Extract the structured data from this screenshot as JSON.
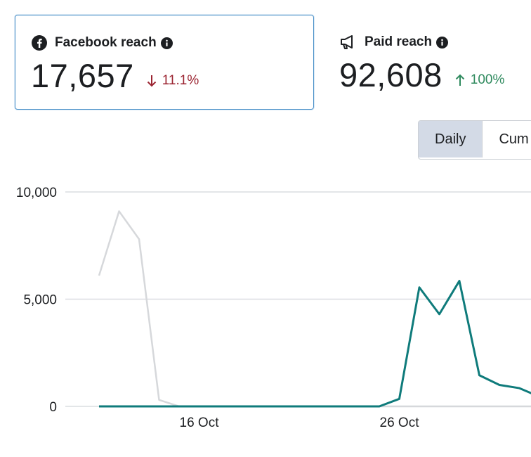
{
  "cards": [
    {
      "label": "Facebook reach",
      "value": "17,657",
      "change": "11.1%",
      "direction": "down",
      "icon": "facebook-icon"
    },
    {
      "label": "Paid reach",
      "value": "92,608",
      "change": "100%",
      "direction": "up",
      "icon": "megaphone-icon"
    }
  ],
  "toggle": {
    "daily_label": "Daily",
    "cumulative_label": "Cum"
  },
  "colors": {
    "primary_series": "#0f7b7b",
    "comparison_series": "#d6d8db",
    "down": "#9b2431",
    "up": "#2f8a5e"
  },
  "chart_data": {
    "type": "line",
    "x": [
      "11 Oct",
      "12 Oct",
      "13 Oct",
      "14 Oct",
      "15 Oct",
      "16 Oct",
      "17 Oct",
      "18 Oct",
      "19 Oct",
      "20 Oct",
      "21 Oct",
      "22 Oct",
      "23 Oct",
      "24 Oct",
      "25 Oct",
      "26 Oct",
      "27 Oct",
      "28 Oct",
      "29 Oct",
      "30 Oct",
      "31 Oct",
      "1 Nov",
      "2 Nov",
      "3 Nov"
    ],
    "x_tick_labels": [
      "16 Oct",
      "26 Oct"
    ],
    "y_tick_labels": [
      "10,000",
      "5,000",
      "0"
    ],
    "ylim": [
      0,
      10000
    ],
    "grid": true,
    "series": [
      {
        "role": "comparison",
        "values": [
          6100,
          9100,
          7800,
          300,
          0,
          0,
          0,
          0,
          0,
          0,
          0,
          0,
          0,
          0,
          0,
          0,
          0,
          0,
          0,
          0,
          0,
          0,
          0,
          0
        ]
      },
      {
        "role": "primary",
        "values": [
          0,
          0,
          0,
          0,
          0,
          0,
          0,
          0,
          0,
          0,
          0,
          0,
          0,
          0,
          0,
          350,
          5550,
          4300,
          5850,
          1450,
          1000,
          850,
          450,
          200
        ]
      }
    ]
  }
}
